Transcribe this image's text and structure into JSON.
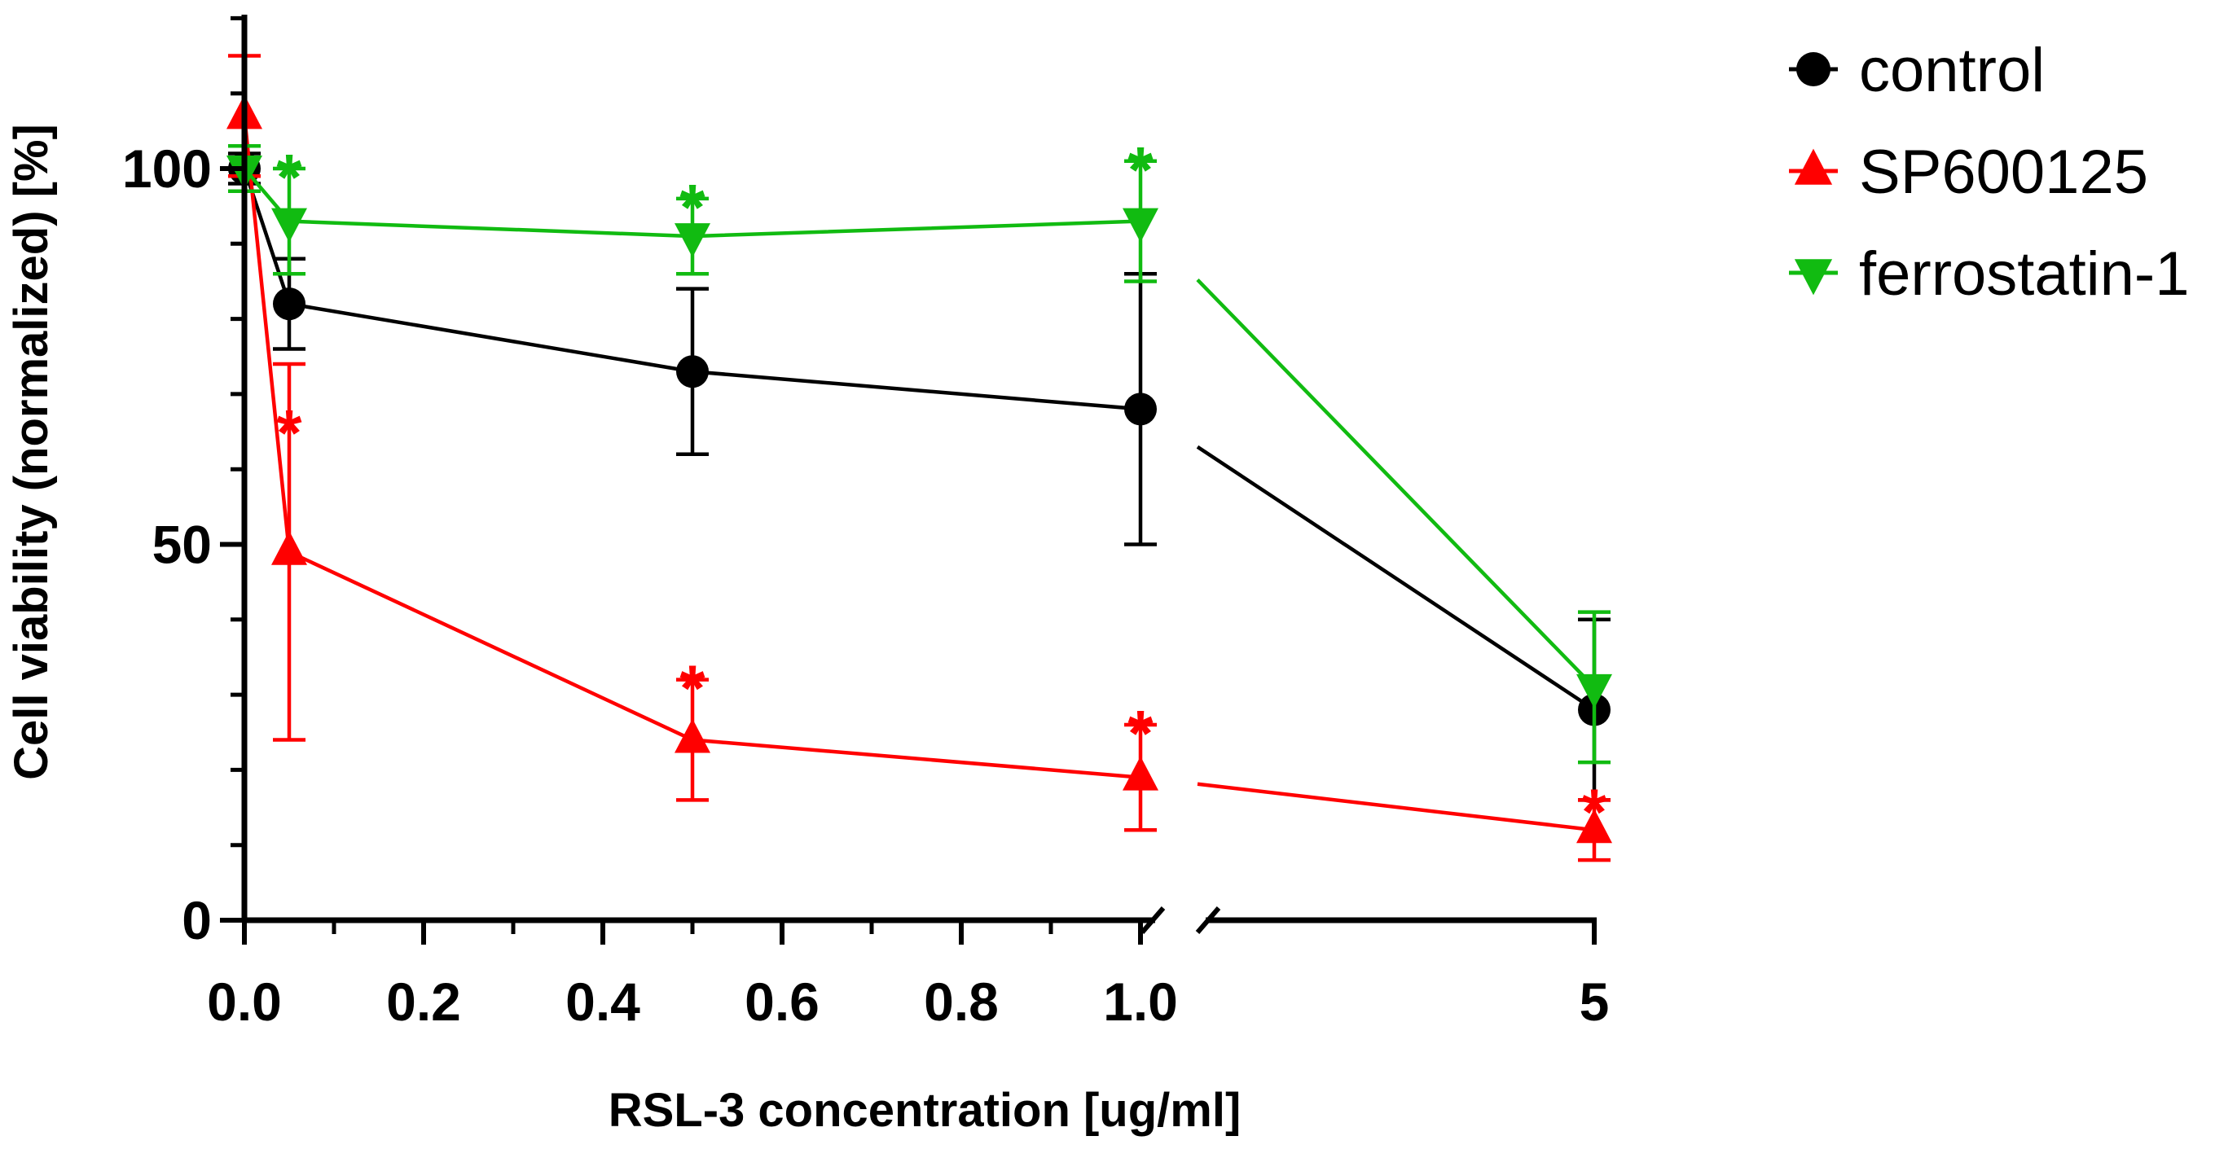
{
  "chart_data": {
    "type": "line",
    "title": "",
    "xlabel": "RSL-3 concentration [ug/ml]",
    "ylabel": "Cell viability (normalized) [%]",
    "y_ticks": [
      "0",
      "50",
      "100"
    ],
    "ylim": [
      0,
      120
    ],
    "x_segments": [
      {
        "range": [
          0,
          1.0
        ],
        "ticks": [
          "0.0",
          "0.2",
          "0.4",
          "0.6",
          "0.8",
          "1.0"
        ]
      },
      {
        "range": [
          5,
          5
        ],
        "ticks": [
          "5"
        ]
      }
    ],
    "x_axis_break": true,
    "legend_position": "top-right",
    "x": [
      0,
      0.05,
      0.5,
      1.0,
      5
    ],
    "series": [
      {
        "name": "control",
        "color": "#000000",
        "marker": "circle",
        "values": [
          100,
          82,
          73,
          68,
          28
        ],
        "errors": [
          2,
          6,
          11,
          18,
          12
        ],
        "significance": [
          false,
          false,
          false,
          false,
          false
        ]
      },
      {
        "name": "SP600125",
        "color": "#ff0000",
        "marker": "triangle-up",
        "values": [
          107,
          49,
          24,
          19,
          12
        ],
        "errors": [
          8,
          25,
          8,
          7,
          4
        ],
        "significance": [
          false,
          true,
          true,
          true,
          true
        ]
      },
      {
        "name": "ferrostatin-1",
        "color": "#11bb11",
        "marker": "triangle-down",
        "values": [
          100,
          93,
          91,
          93,
          31
        ],
        "errors": [
          3,
          7,
          5,
          8,
          10
        ],
        "significance": [
          false,
          true,
          true,
          true,
          false
        ]
      }
    ],
    "significance_symbol": "*",
    "grid": false
  }
}
